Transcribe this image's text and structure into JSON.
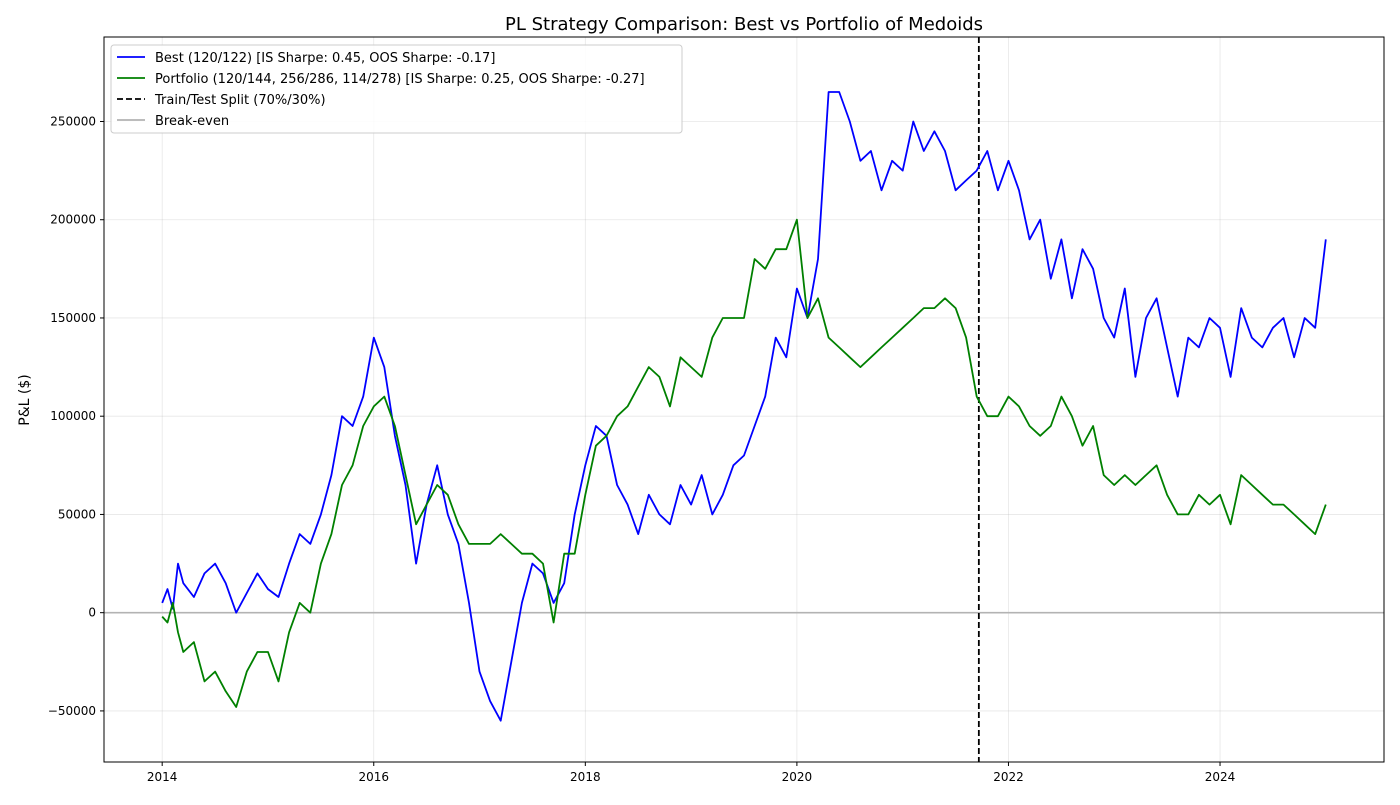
{
  "chart_data": {
    "type": "line",
    "title": "PL Strategy Comparison: Best vs Portfolio of Medoids",
    "xlabel": "",
    "ylabel": "P&L ($)",
    "xlim": [
      2013.45,
      2025.55
    ],
    "ylim": [
      -76000,
      293000
    ],
    "x_ticks": [
      2014,
      2016,
      2018,
      2020,
      2022,
      2024
    ],
    "x_tick_labels": [
      "2014",
      "2016",
      "2018",
      "2020",
      "2022",
      "2024"
    ],
    "y_ticks": [
      -50000,
      0,
      50000,
      100000,
      150000,
      200000,
      250000
    ],
    "y_tick_labels": [
      "−50000",
      "0",
      "50000",
      "100000",
      "150000",
      "200000",
      "250000"
    ],
    "grid": true,
    "legend_position": "top-left",
    "series": [
      {
        "name": "Best (120/122) [IS Sharpe: 0.45, OOS Sharpe: -0.17]",
        "color": "#0000ff",
        "style": "solid",
        "x": [
          2014.0,
          2014.05,
          2014.1,
          2014.15,
          2014.2,
          2014.3,
          2014.4,
          2014.5,
          2014.6,
          2014.7,
          2014.8,
          2014.9,
          2015.0,
          2015.1,
          2015.2,
          2015.3,
          2015.4,
          2015.5,
          2015.6,
          2015.7,
          2015.8,
          2015.9,
          2016.0,
          2016.1,
          2016.2,
          2016.3,
          2016.4,
          2016.5,
          2016.6,
          2016.7,
          2016.8,
          2016.9,
          2017.0,
          2017.1,
          2017.2,
          2017.3,
          2017.4,
          2017.5,
          2017.6,
          2017.7,
          2017.8,
          2017.9,
          2018.0,
          2018.1,
          2018.2,
          2018.3,
          2018.4,
          2018.5,
          2018.6,
          2018.7,
          2018.8,
          2018.9,
          2019.0,
          2019.1,
          2019.2,
          2019.3,
          2019.4,
          2019.5,
          2019.6,
          2019.7,
          2019.8,
          2019.9,
          2020.0,
          2020.1,
          2020.2,
          2020.3,
          2020.4,
          2020.5,
          2020.6,
          2020.7,
          2020.8,
          2020.9,
          2021.0,
          2021.1,
          2021.2,
          2021.3,
          2021.4,
          2021.5,
          2021.6,
          2021.7,
          2021.8,
          2021.9,
          2022.0,
          2022.1,
          2022.2,
          2022.3,
          2022.4,
          2022.5,
          2022.6,
          2022.7,
          2022.8,
          2022.9,
          2023.0,
          2023.1,
          2023.2,
          2023.3,
          2023.4,
          2023.5,
          2023.6,
          2023.7,
          2023.8,
          2023.9,
          2024.0,
          2024.1,
          2024.2,
          2024.3,
          2024.4,
          2024.5,
          2024.6,
          2024.7,
          2024.8,
          2024.9,
          2025.0
        ],
        "y": [
          5000,
          12000,
          2000,
          25000,
          15000,
          8000,
          20000,
          25000,
          15000,
          0,
          10000,
          20000,
          12000,
          8000,
          25000,
          40000,
          35000,
          50000,
          70000,
          100000,
          95000,
          110000,
          140000,
          125000,
          90000,
          65000,
          25000,
          55000,
          75000,
          50000,
          35000,
          5000,
          -30000,
          -45000,
          -55000,
          -25000,
          5000,
          25000,
          20000,
          5000,
          15000,
          50000,
          75000,
          95000,
          90000,
          65000,
          55000,
          40000,
          60000,
          50000,
          45000,
          65000,
          55000,
          70000,
          50000,
          60000,
          75000,
          80000,
          95000,
          110000,
          140000,
          130000,
          165000,
          150000,
          180000,
          265000,
          265000,
          250000,
          230000,
          235000,
          215000,
          230000,
          225000,
          250000,
          235000,
          245000,
          235000,
          215000,
          220000,
          225000,
          235000,
          215000,
          230000,
          215000,
          190000,
          200000,
          170000,
          190000,
          160000,
          185000,
          175000,
          150000,
          140000,
          165000,
          120000,
          150000,
          160000,
          135000,
          110000,
          140000,
          135000,
          150000,
          145000,
          120000,
          155000,
          140000,
          135000,
          145000,
          150000,
          130000,
          150000,
          145000,
          190000
        ]
      },
      {
        "name": "Portfolio (120/144, 256/286, 114/278) [IS Sharpe: 0.25, OOS Sharpe: -0.27]",
        "color": "#008000",
        "style": "solid",
        "x": [
          2014.0,
          2014.05,
          2014.1,
          2014.15,
          2014.2,
          2014.3,
          2014.4,
          2014.5,
          2014.6,
          2014.7,
          2014.8,
          2014.9,
          2015.0,
          2015.1,
          2015.2,
          2015.3,
          2015.4,
          2015.5,
          2015.6,
          2015.7,
          2015.8,
          2015.9,
          2016.0,
          2016.1,
          2016.2,
          2016.3,
          2016.4,
          2016.5,
          2016.6,
          2016.7,
          2016.8,
          2016.9,
          2017.0,
          2017.1,
          2017.2,
          2017.3,
          2017.4,
          2017.5,
          2017.6,
          2017.7,
          2017.8,
          2017.9,
          2018.0,
          2018.1,
          2018.2,
          2018.3,
          2018.4,
          2018.5,
          2018.6,
          2018.7,
          2018.8,
          2018.9,
          2019.0,
          2019.1,
          2019.2,
          2019.3,
          2019.4,
          2019.5,
          2019.6,
          2019.7,
          2019.8,
          2019.9,
          2020.0,
          2020.1,
          2020.2,
          2020.3,
          2020.4,
          2020.5,
          2020.6,
          2020.7,
          2020.8,
          2020.9,
          2021.0,
          2021.1,
          2021.2,
          2021.3,
          2021.4,
          2021.5,
          2021.6,
          2021.7,
          2021.8,
          2021.9,
          2022.0,
          2022.1,
          2022.2,
          2022.3,
          2022.4,
          2022.5,
          2022.6,
          2022.7,
          2022.8,
          2022.9,
          2023.0,
          2023.1,
          2023.2,
          2023.3,
          2023.4,
          2023.5,
          2023.6,
          2023.7,
          2023.8,
          2023.9,
          2024.0,
          2024.1,
          2024.2,
          2024.3,
          2024.4,
          2024.5,
          2024.6,
          2024.7,
          2024.8,
          2024.9,
          2025.0
        ],
        "y": [
          -2000,
          -5000,
          5000,
          -10000,
          -20000,
          -15000,
          -35000,
          -30000,
          -40000,
          -48000,
          -30000,
          -20000,
          -20000,
          -35000,
          -10000,
          5000,
          0,
          25000,
          40000,
          65000,
          75000,
          95000,
          105000,
          110000,
          95000,
          70000,
          45000,
          55000,
          65000,
          60000,
          45000,
          35000,
          35000,
          35000,
          40000,
          35000,
          30000,
          30000,
          25000,
          -5000,
          30000,
          30000,
          60000,
          85000,
          90000,
          100000,
          105000,
          115000,
          125000,
          120000,
          105000,
          130000,
          125000,
          120000,
          140000,
          150000,
          150000,
          150000,
          180000,
          175000,
          185000,
          185000,
          200000,
          150000,
          160000,
          140000,
          135000,
          130000,
          125000,
          130000,
          135000,
          140000,
          145000,
          150000,
          155000,
          155000,
          160000,
          155000,
          140000,
          110000,
          100000,
          100000,
          110000,
          105000,
          95000,
          90000,
          95000,
          110000,
          100000,
          85000,
          95000,
          70000,
          65000,
          70000,
          65000,
          70000,
          75000,
          60000,
          50000,
          50000,
          60000,
          55000,
          60000,
          45000,
          70000,
          65000,
          60000,
          55000,
          55000,
          50000,
          45000,
          40000,
          55000
        ]
      }
    ],
    "reference_lines": {
      "split": {
        "x": 2021.72,
        "label": "Train/Test Split (70%/30%)",
        "color": "#000000",
        "style": "dashed"
      },
      "breakeven": {
        "y": 0,
        "label": "Break-even",
        "color": "#b3b3b3",
        "style": "solid"
      }
    }
  }
}
